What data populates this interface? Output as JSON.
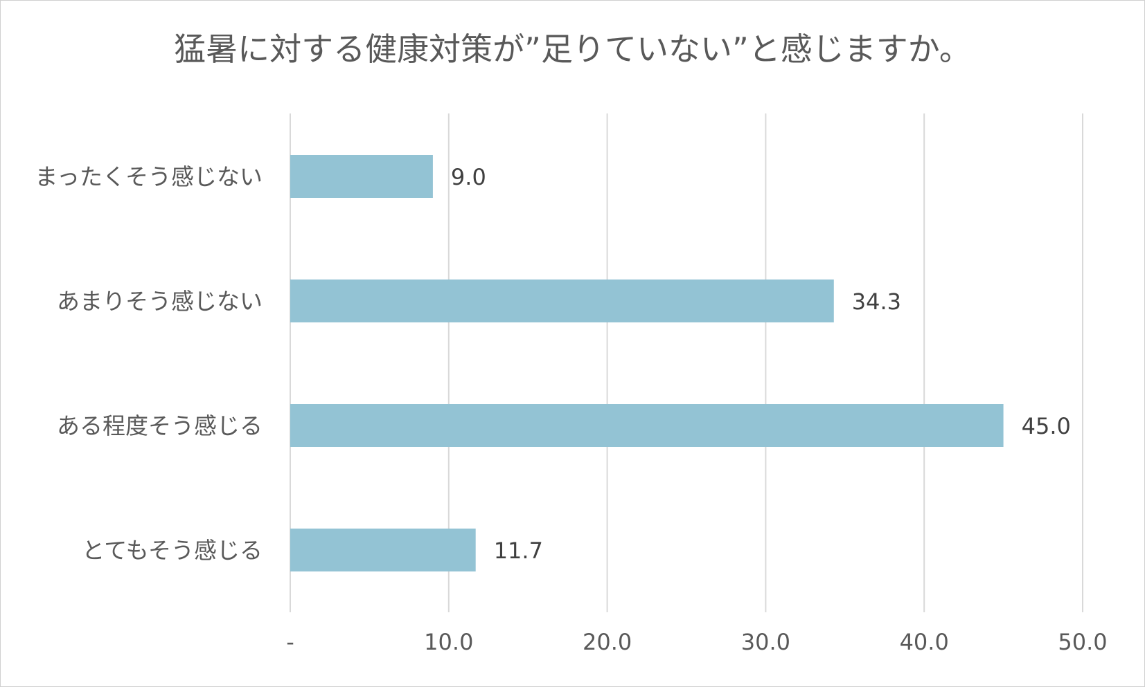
{
  "chart_data": {
    "type": "bar",
    "orientation": "horizontal",
    "title": "猛暑に対する健康対策が”足りていない”と感じますか。",
    "categories": [
      "まったくそう感じない",
      "あまりそう感じない",
      "ある程度そう感じる",
      "とてもそう感じる"
    ],
    "values": [
      9.0,
      34.3,
      45.0,
      11.7
    ],
    "value_labels": [
      "9.0",
      "34.3",
      "45.0",
      "11.7"
    ],
    "xlim": [
      0,
      50
    ],
    "x_ticks": [
      0,
      10,
      20,
      30,
      40,
      50
    ],
    "x_tick_labels": [
      "-",
      "10.0",
      "20.0",
      "30.0",
      "40.0",
      "50.0"
    ],
    "grid": "vertical",
    "legend": "none",
    "bar_color": "#93c3d4",
    "grid_color": "#d9d9d9"
  }
}
